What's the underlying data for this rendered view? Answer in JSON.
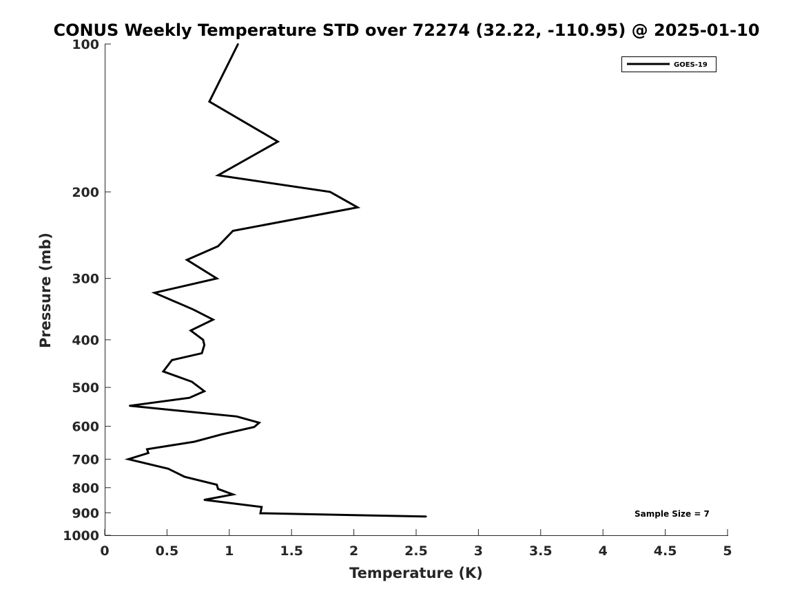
{
  "chart_data": {
    "type": "line",
    "title": "CONUS Weekly Temperature STD over 72274 (32.22, -110.95) @ 2025-01-10",
    "xlabel": "Temperature (K)",
    "ylabel": "Pressure (mb)",
    "xlim": [
      0,
      5
    ],
    "ylim": [
      100,
      1000
    ],
    "y_scale": "log",
    "y_reversed": true,
    "x_ticks": [
      "0",
      "0.5",
      "1",
      "1.5",
      "2",
      "2.5",
      "3",
      "3.5",
      "4",
      "4.5",
      "5"
    ],
    "y_ticks": [
      "100",
      "200",
      "300",
      "400",
      "500",
      "600",
      "700",
      "800",
      "900",
      "1000"
    ],
    "grid": false,
    "legend_position": "top-right",
    "series": [
      {
        "name": "GOES-19",
        "color": "#000000",
        "x": [
          1.07,
          0.84,
          1.39,
          0.91,
          1.81,
          2.03,
          1.03,
          0.91,
          0.66,
          0.9,
          0.4,
          0.71,
          0.87,
          0.69,
          0.79,
          0.8,
          0.78,
          0.54,
          0.47,
          0.7,
          0.8,
          0.68,
          0.2,
          1.06,
          1.24,
          1.2,
          0.94,
          0.72,
          0.34,
          0.35,
          0.19,
          0.51,
          0.64,
          0.9,
          0.91,
          1.03,
          0.8,
          1.26,
          1.25,
          2.58
        ],
        "y": [
          100,
          131,
          158,
          185,
          200,
          215,
          240,
          258,
          275,
          300,
          321,
          347,
          364,
          383,
          400,
          410,
          426,
          440,
          464,
          487,
          509,
          525,
          545,
          573,
          590,
          602,
          623,
          645,
          668,
          680,
          700,
          732,
          760,
          789,
          805,
          826,
          847,
          876,
          902,
          916
        ]
      }
    ],
    "annotations": [
      "Sample Size = 7"
    ]
  }
}
